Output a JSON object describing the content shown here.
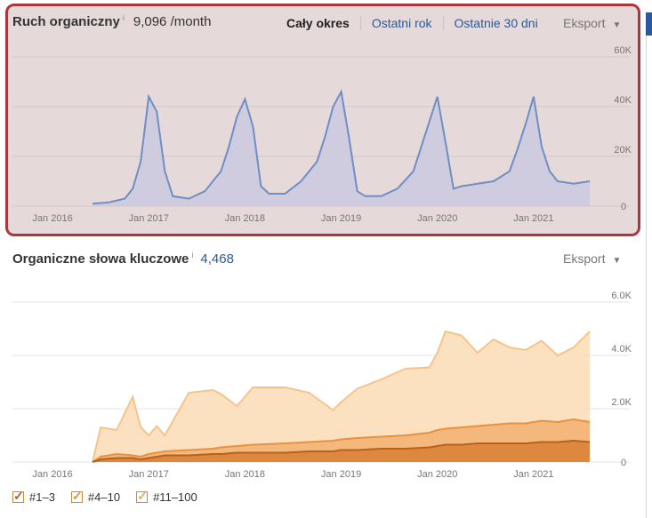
{
  "top": {
    "title": "Ruch organiczny",
    "info": "i",
    "metric": "9,096 /month",
    "tabs": [
      "Cały okres",
      "Ostatni rok",
      "Ostatnie 30 dni"
    ],
    "export_label": "Eksport",
    "caret": "▼"
  },
  "bottom": {
    "title": "Organiczne słowa kluczowe",
    "info": "i",
    "metric": "4,468",
    "export_label": "Eksport",
    "caret": "▼"
  },
  "legend": [
    {
      "label": "#1–3",
      "color": "#b8601e"
    },
    {
      "label": "#4–10",
      "color": "#e8913f"
    },
    {
      "label": "#11–100",
      "color": "#f6c48a"
    }
  ],
  "colors": {
    "highlight_border": "#b2343a",
    "traffic_line": "#6f8ec4",
    "traffic_fill": "#c9c8e0",
    "link": "#2a5a9b"
  },
  "chart_data": [
    {
      "type": "area",
      "title": "Ruch organiczny",
      "x_tick_labels": [
        "Jan 2016",
        "Jan 2017",
        "Jan 2018",
        "Jan 2019",
        "Jan 2020",
        "Jan 2021"
      ],
      "y_tick_labels": [
        "0",
        "20K",
        "40K",
        "60K"
      ],
      "ylim": [
        0,
        60000
      ],
      "xlim": [
        "2015-08",
        "2021-09"
      ],
      "y_axis_position": "right",
      "grid": true,
      "series": [
        {
          "x": [
            "2016-06",
            "2016-08",
            "2016-10",
            "2016-11",
            "2016-12",
            "2017-01",
            "2017-02",
            "2017-03",
            "2017-04",
            "2017-06",
            "2017-08",
            "2017-10",
            "2017-11",
            "2017-12",
            "2018-01",
            "2018-02",
            "2018-03",
            "2018-04",
            "2018-06",
            "2018-08",
            "2018-10",
            "2018-11",
            "2018-12",
            "2019-01",
            "2019-02",
            "2019-03",
            "2019-04",
            "2019-06",
            "2019-08",
            "2019-10",
            "2019-11",
            "2019-12",
            "2020-01",
            "2020-02",
            "2020-03",
            "2020-04",
            "2020-06",
            "2020-08",
            "2020-10",
            "2020-11",
            "2020-12",
            "2021-01",
            "2021-02",
            "2021-03",
            "2021-04",
            "2021-06",
            "2021-08"
          ],
          "values": [
            1000,
            1500,
            3000,
            7000,
            18000,
            44000,
            38000,
            14000,
            4000,
            3000,
            6000,
            14000,
            24000,
            36000,
            43000,
            32000,
            8000,
            5000,
            5000,
            10000,
            18000,
            28000,
            40000,
            46000,
            27000,
            6000,
            4000,
            4000,
            7000,
            14000,
            24000,
            34000,
            44000,
            26000,
            7000,
            8000,
            9000,
            10000,
            14000,
            23000,
            33000,
            44000,
            24000,
            14000,
            10000,
            9000,
            10000
          ]
        }
      ]
    },
    {
      "type": "area",
      "title": "Organiczne słowa kluczowe",
      "x_tick_labels": [
        "Jan 2016",
        "Jan 2017",
        "Jan 2018",
        "Jan 2019",
        "Jan 2020",
        "Jan 2021"
      ],
      "y_tick_labels": [
        "0",
        "2.0K",
        "4.0K",
        "6.0K"
      ],
      "ylim": [
        0,
        6000
      ],
      "xlim": [
        "2015-08",
        "2021-09"
      ],
      "y_axis_position": "right",
      "grid": true,
      "stacked_display": "overlapping",
      "x": [
        "2016-06",
        "2016-07",
        "2016-09",
        "2016-11",
        "2016-12",
        "2017-01",
        "2017-02",
        "2017-03",
        "2017-06",
        "2017-09",
        "2017-10",
        "2017-12",
        "2018-02",
        "2018-06",
        "2018-09",
        "2018-12",
        "2019-01",
        "2019-03",
        "2019-06",
        "2019-09",
        "2019-12",
        "2020-01",
        "2020-02",
        "2020-04",
        "2020-06",
        "2020-08",
        "2020-10",
        "2020-12",
        "2021-02",
        "2021-04",
        "2021-06",
        "2021-08"
      ],
      "series": [
        {
          "name": "#11–100",
          "values": [
            0,
            1300,
            1200,
            2450,
            1300,
            1000,
            1350,
            1000,
            2600,
            2700,
            2550,
            2100,
            2800,
            2800,
            2600,
            1950,
            2250,
            2750,
            3100,
            3500,
            3550,
            4100,
            4900,
            4750,
            4100,
            4600,
            4300,
            4200,
            4550,
            4000,
            4300,
            4900
          ]
        },
        {
          "name": "#4–10",
          "values": [
            0,
            200,
            300,
            250,
            200,
            300,
            350,
            400,
            450,
            500,
            550,
            600,
            650,
            700,
            750,
            800,
            850,
            900,
            950,
            1000,
            1100,
            1200,
            1250,
            1300,
            1350,
            1400,
            1450,
            1450,
            1550,
            1500,
            1600,
            1500
          ]
        },
        {
          "name": "#1–3",
          "values": [
            0,
            100,
            150,
            150,
            100,
            150,
            200,
            250,
            250,
            300,
            300,
            350,
            350,
            350,
            400,
            400,
            450,
            450,
            500,
            500,
            550,
            600,
            650,
            650,
            700,
            700,
            700,
            700,
            750,
            750,
            800,
            750
          ]
        }
      ]
    }
  ]
}
